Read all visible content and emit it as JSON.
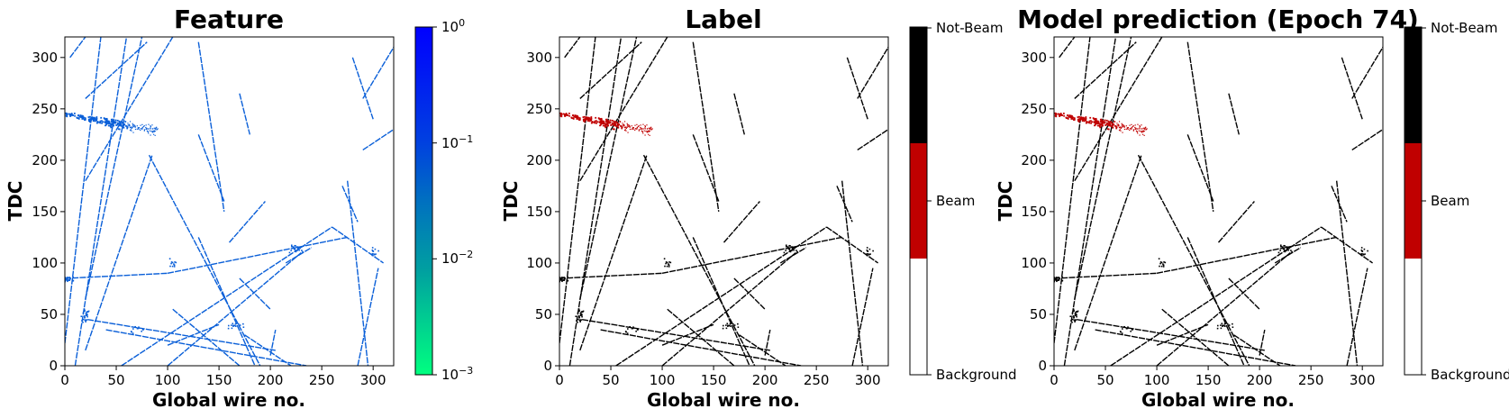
{
  "chart_data": [
    {
      "type": "heatmap",
      "title": "Feature",
      "xlabel": "Global wire no.",
      "ylabel": "TDC",
      "xlim": [
        0,
        320
      ],
      "ylim": [
        0,
        320
      ],
      "xticks": [
        0,
        50,
        100,
        150,
        200,
        250,
        300
      ],
      "yticks": [
        0,
        50,
        100,
        150,
        200,
        250,
        300
      ],
      "track_color": "#0a5fd8",
      "colorbar": {
        "scale": "log",
        "range": [
          0.001,
          1
        ],
        "ticks": [
          "10^0",
          "10^-1",
          "10^-2",
          "10^-3"
        ],
        "colors": [
          "#0000ff",
          "#00ff80"
        ]
      }
    },
    {
      "type": "heatmap",
      "title": "Label",
      "xlabel": "Global wire no.",
      "ylabel": "TDC",
      "xlim": [
        0,
        320
      ],
      "ylim": [
        0,
        320
      ],
      "xticks": [
        0,
        50,
        100,
        150,
        200,
        250,
        300
      ],
      "yticks": [
        0,
        50,
        100,
        150,
        200,
        250,
        300
      ],
      "track_color": "#000000",
      "beam_color": "#c00000",
      "colorbar": {
        "scale": "categorical",
        "categories": [
          "Not-Beam",
          "Beam",
          "Background"
        ],
        "colors": [
          "#000000",
          "#c00000",
          "#ffffff"
        ]
      }
    },
    {
      "type": "heatmap",
      "title": "Model prediction (Epoch 74)",
      "xlabel": "Global wire no.",
      "ylabel": "TDC",
      "xlim": [
        0,
        320
      ],
      "ylim": [
        0,
        320
      ],
      "xticks": [
        0,
        50,
        100,
        150,
        200,
        250,
        300
      ],
      "yticks": [
        0,
        50,
        100,
        150,
        200,
        250,
        300
      ],
      "track_color": "#000000",
      "beam_color": "#c00000",
      "colorbar": {
        "scale": "categorical",
        "categories": [
          "Not-Beam",
          "Beam",
          "Background"
        ],
        "colors": [
          "#000000",
          "#c00000",
          "#ffffff"
        ]
      }
    }
  ],
  "tracks": [
    [
      [
        0,
        22
      ],
      [
        35,
        320
      ]
    ],
    [
      [
        10,
        0
      ],
      [
        60,
        320
      ]
    ],
    [
      [
        20,
        65
      ],
      [
        75,
        320
      ]
    ],
    [
      [
        20,
        180
      ],
      [
        105,
        320
      ]
    ],
    [
      [
        5,
        300
      ],
      [
        20,
        320
      ]
    ],
    [
      [
        82,
        205
      ],
      [
        190,
        0
      ]
    ],
    [
      [
        20,
        15
      ],
      [
        85,
        205
      ]
    ],
    [
      [
        0,
        85
      ],
      [
        100,
        90
      ]
    ],
    [
      [
        100,
        90
      ],
      [
        275,
        125
      ]
    ],
    [
      [
        55,
        0
      ],
      [
        260,
        135
      ]
    ],
    [
      [
        100,
        0
      ],
      [
        230,
        110
      ]
    ],
    [
      [
        130,
        125
      ],
      [
        185,
        0
      ]
    ],
    [
      [
        260,
        135
      ],
      [
        310,
        100
      ]
    ],
    [
      [
        22,
        45
      ],
      [
        205,
        15
      ]
    ],
    [
      [
        40,
        35
      ],
      [
        235,
        0
      ]
    ],
    [
      [
        285,
        0
      ],
      [
        305,
        95
      ]
    ],
    [
      [
        275,
        180
      ],
      [
        295,
        0
      ]
    ],
    [
      [
        130,
        225
      ],
      [
        155,
        160
      ]
    ],
    [
      [
        130,
        315
      ],
      [
        155,
        150
      ]
    ],
    [
      [
        170,
        265
      ],
      [
        180,
        225
      ]
    ],
    [
      [
        290,
        210
      ],
      [
        320,
        230
      ]
    ],
    [
      [
        160,
        120
      ],
      [
        195,
        160
      ]
    ],
    [
      [
        290,
        260
      ],
      [
        320,
        310
      ]
    ],
    [
      [
        280,
        300
      ],
      [
        300,
        240
      ]
    ],
    [
      [
        20,
        260
      ],
      [
        80,
        315
      ]
    ],
    [
      [
        105,
        55
      ],
      [
        170,
        0
      ]
    ],
    [
      [
        170,
        85
      ],
      [
        200,
        55
      ]
    ],
    [
      [
        200,
        10
      ],
      [
        205,
        35
      ]
    ],
    [
      [
        100,
        20
      ],
      [
        150,
        40
      ]
    ],
    [
      [
        175,
        30
      ],
      [
        220,
        0
      ]
    ],
    [
      [
        270,
        175
      ],
      [
        285,
        140
      ]
    ],
    [
      [
        215,
        100
      ],
      [
        240,
        115
      ]
    ]
  ],
  "beam_cluster": {
    "x_range": [
      0,
      90
    ],
    "y_center": 240,
    "slope": -0.18,
    "spread": 6
  },
  "noise_clusters": [
    [
      [
        0,
        85
      ],
      [
        10,
        5
      ],
      40
    ],
    [
      [
        20,
        50
      ],
      [
        6,
        10
      ],
      30
    ],
    [
      [
        225,
        115
      ],
      [
        10,
        6
      ],
      25
    ],
    [
      [
        105,
        100
      ],
      [
        8,
        6
      ],
      12
    ],
    [
      [
        300,
        110
      ],
      [
        6,
        8
      ],
      12
    ],
    [
      [
        165,
        40
      ],
      [
        12,
        6
      ],
      15
    ],
    [
      [
        70,
        35
      ],
      [
        10,
        5
      ],
      12
    ]
  ]
}
